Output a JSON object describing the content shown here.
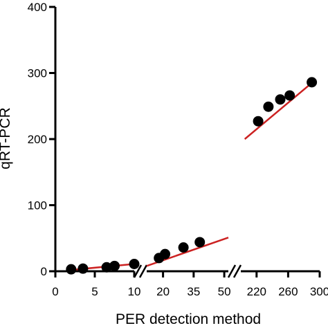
{
  "chart_data": {
    "type": "scatter",
    "xlabel": "PER detection method",
    "ylabel": "qRT-PCR",
    "ylim": [
      0,
      400
    ],
    "yticks": [
      0,
      100,
      200,
      300,
      400
    ],
    "grid": false,
    "legend": "none",
    "point_color": "#000000",
    "fit_line_color": "#cc2222",
    "broken_x_axis": true,
    "segments": [
      {
        "xlim": [
          0,
          10
        ],
        "xticks": [
          0,
          5,
          10
        ],
        "x": [
          2,
          3.5,
          6.5,
          7.5,
          10
        ],
        "y": [
          3,
          4,
          6,
          8,
          11
        ],
        "fit": {
          "x": [
            2,
            10
          ],
          "y": [
            2,
            11
          ]
        }
      },
      {
        "xlim": [
          12,
          52
        ],
        "xticks": [
          20,
          35,
          50
        ],
        "x": [
          18,
          21,
          30,
          38
        ],
        "y": [
          20,
          26,
          36,
          44
        ],
        "fit": {
          "x": [
            12,
            52
          ],
          "y": [
            8,
            51
          ]
        }
      },
      {
        "xlim": [
          200,
          300
        ],
        "xticks": [
          220,
          260,
          300
        ],
        "x": [
          222,
          235,
          250,
          262,
          290
        ],
        "y": [
          227,
          249,
          260,
          266,
          286
        ],
        "fit": {
          "x": [
            205,
            292
          ],
          "y": [
            200,
            287
          ]
        }
      }
    ]
  }
}
